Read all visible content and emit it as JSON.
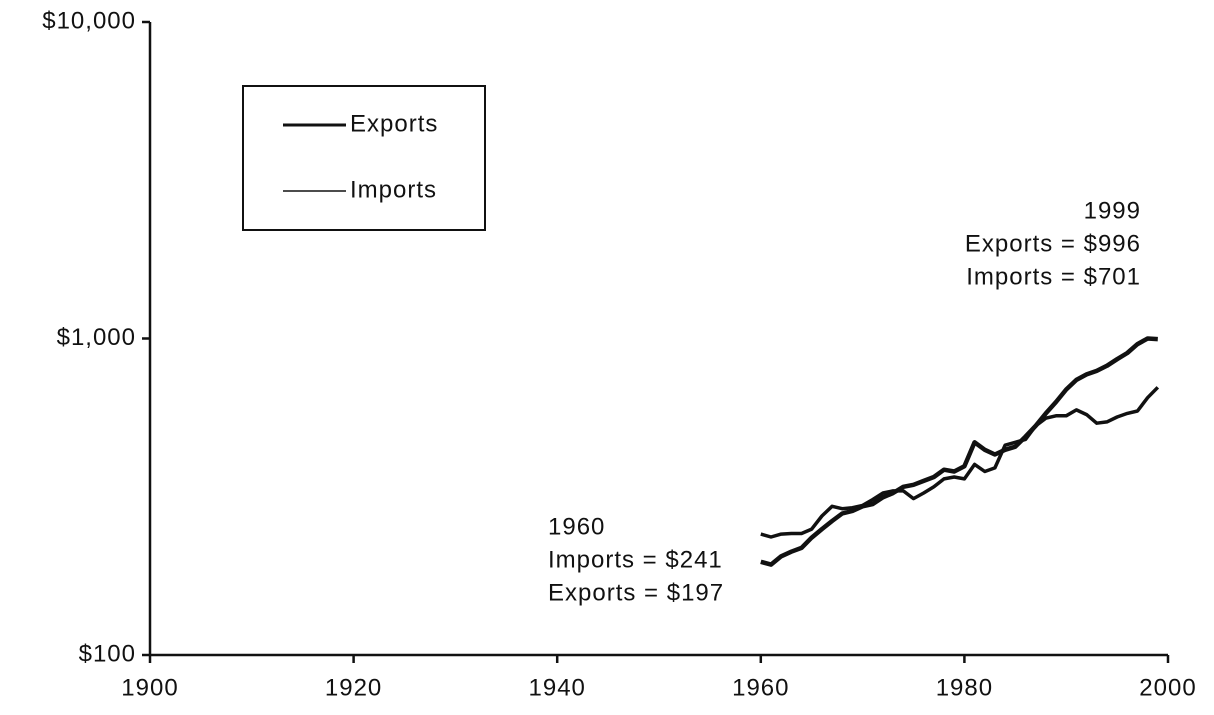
{
  "chart_data": {
    "type": "line",
    "log_y": true,
    "x": [
      1960,
      1961,
      1962,
      1963,
      1964,
      1965,
      1966,
      1967,
      1968,
      1969,
      1970,
      1971,
      1972,
      1973,
      1974,
      1975,
      1976,
      1977,
      1978,
      1979,
      1980,
      1981,
      1982,
      1983,
      1984,
      1985,
      1986,
      1987,
      1988,
      1989,
      1990,
      1991,
      1992,
      1993,
      1994,
      1995,
      1996,
      1997,
      1998,
      1999
    ],
    "series": [
      {
        "name": "Exports",
        "color": "#111111",
        "values": [
          197,
          193,
          205,
          212,
          218,
          235,
          250,
          265,
          280,
          285,
          295,
          300,
          315,
          325,
          340,
          345,
          355,
          365,
          385,
          380,
          395,
          470,
          445,
          430,
          445,
          455,
          490,
          530,
          580,
          630,
          690,
          740,
          770,
          790,
          820,
          860,
          900,
          960,
          1000,
          996
        ]
      },
      {
        "name": "Imports",
        "color": "#111111",
        "values": [
          241,
          236,
          241,
          242,
          242,
          250,
          275,
          295,
          290,
          292,
          297,
          310,
          325,
          330,
          330,
          312,
          325,
          340,
          360,
          365,
          360,
          400,
          380,
          390,
          460,
          470,
          480,
          530,
          560,
          570,
          570,
          595,
          575,
          540,
          545,
          565,
          580,
          590,
          650,
          701
        ]
      }
    ],
    "xlim": [
      1900,
      2000
    ],
    "xticks": [
      1900,
      1920,
      1940,
      1960,
      1980,
      2000
    ],
    "ylim": [
      100,
      10000
    ],
    "yticks": [
      {
        "value": 100,
        "label": "$100"
      },
      {
        "value": 1000,
        "label": "$1,000"
      },
      {
        "value": 10000,
        "label": "$10,000"
      }
    ],
    "annotations": [
      {
        "lines": [
          "1999",
          "Exports = $996",
          "Imports = $701"
        ]
      },
      {
        "lines": [
          "1960",
          "Imports = $241",
          "Exports = $197"
        ]
      }
    ]
  }
}
